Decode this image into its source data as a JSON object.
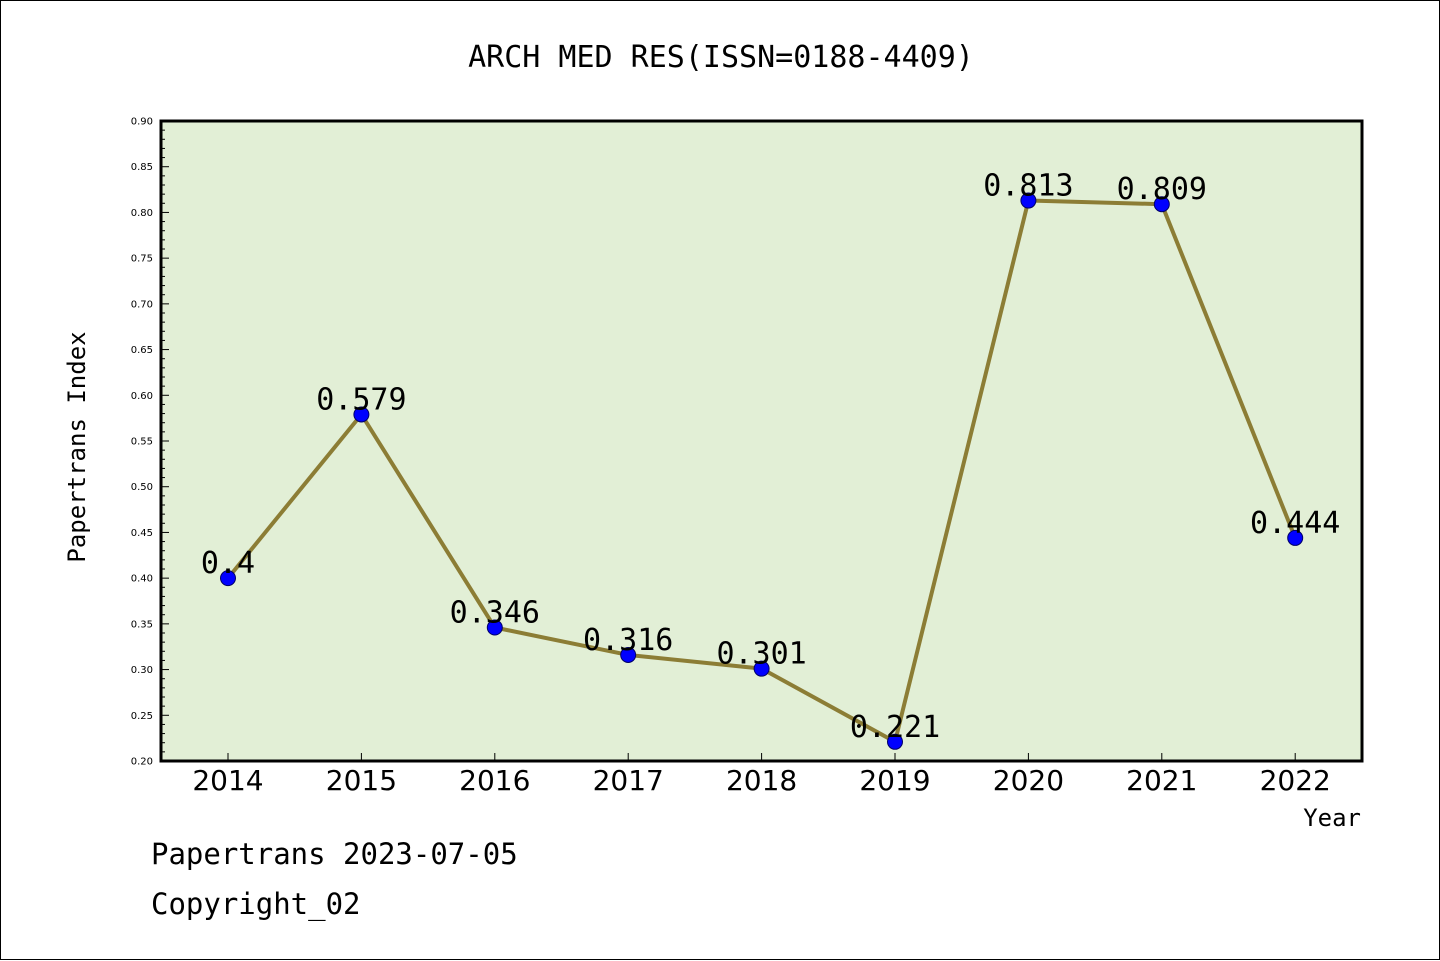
{
  "chart_data": {
    "type": "line",
    "title": "ARCH MED RES(ISSN=0188-4409)",
    "xlabel": "Year",
    "ylabel": "Papertrans Index",
    "categories": [
      "2014",
      "2015",
      "2016",
      "2017",
      "2018",
      "2019",
      "2020",
      "2021",
      "2022"
    ],
    "series": [
      {
        "values": [
          0.4,
          0.579,
          0.346,
          0.316,
          0.301,
          0.221,
          0.813,
          0.809,
          0.444
        ],
        "labels": [
          "0.4",
          "0.579",
          "0.346",
          "0.316",
          "0.301",
          "0.221",
          "0.813",
          "0.809",
          "0.444"
        ]
      }
    ],
    "ylim": [
      0.2,
      0.9
    ],
    "yticks": [
      "0.20",
      "0.25",
      "0.30",
      "0.35",
      "0.40",
      "0.45",
      "0.50",
      "0.55",
      "0.60",
      "0.65",
      "0.70",
      "0.75",
      "0.80",
      "0.85",
      "0.90"
    ],
    "grid": false,
    "legend": "none"
  },
  "colors": {
    "plot_background": "#e2efd6",
    "line": "#8c7d35",
    "marker": "#0000ff",
    "marker_edge": "#000066",
    "axis": "#000000"
  },
  "footer": {
    "date_text": "Papertrans 2023-07-05",
    "copyright_text": "Copyright_02"
  }
}
